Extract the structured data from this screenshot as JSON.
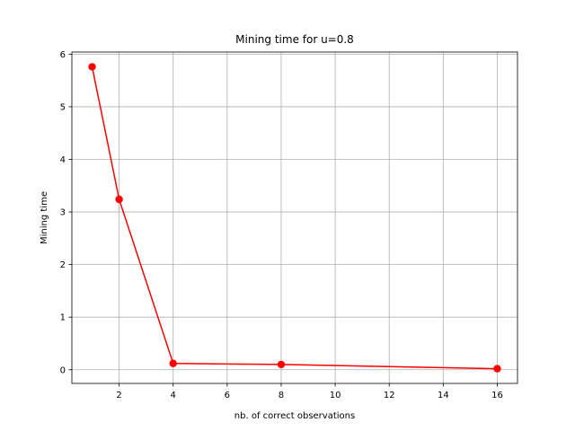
{
  "chart_data": {
    "type": "line",
    "title": "Mining time for u=0.8",
    "xlabel": "nb. of correct observations",
    "ylabel": "Mining time",
    "xlim": [
      0.25,
      16.75
    ],
    "ylim": [
      -0.26,
      6.04
    ],
    "xticks": [
      2,
      4,
      6,
      8,
      10,
      12,
      14,
      16
    ],
    "yticks": [
      0,
      1,
      2,
      3,
      4,
      5,
      6
    ],
    "grid": true,
    "series": [
      {
        "color": "#ff0000",
        "marker": "circle",
        "x": [
          1,
          2,
          4,
          8,
          16
        ],
        "y": [
          5.76,
          3.24,
          0.12,
          0.1,
          0.02
        ]
      }
    ]
  }
}
